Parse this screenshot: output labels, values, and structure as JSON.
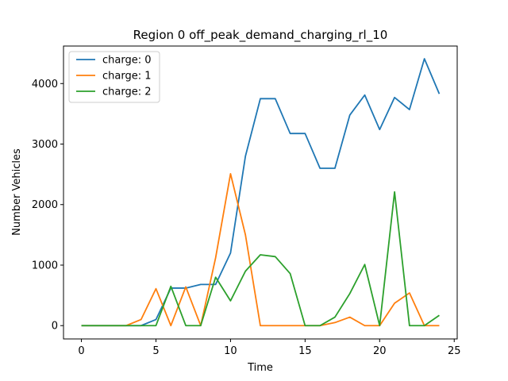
{
  "chart_data": {
    "type": "line",
    "title": "Region 0 off_peak_demand_charging_rl_10",
    "xlabel": "Time",
    "ylabel": "Number Vehicles",
    "xlim": [
      -1.2,
      25.2
    ],
    "ylim": [
      -220,
      4620
    ],
    "xticks": [
      0,
      5,
      10,
      15,
      20,
      25
    ],
    "yticks": [
      0,
      1000,
      2000,
      3000,
      4000
    ],
    "legend_position": "upper-left",
    "grid": false,
    "x": [
      0,
      1,
      2,
      3,
      4,
      5,
      6,
      7,
      8,
      9,
      10,
      11,
      12,
      13,
      14,
      15,
      16,
      17,
      18,
      19,
      20,
      21,
      22,
      23,
      24
    ],
    "series": [
      {
        "name": "charge: 0",
        "color": "#1f77b4",
        "values": [
          0,
          0,
          0,
          0,
          0,
          100,
          620,
          620,
          680,
          680,
          1200,
          2800,
          3750,
          3750,
          3175,
          3175,
          2600,
          2600,
          3480,
          3810,
          3240,
          3770,
          3570,
          4410,
          3830
        ]
      },
      {
        "name": "charge: 1",
        "color": "#ff7f0e",
        "values": [
          0,
          0,
          0,
          0,
          100,
          610,
          0,
          640,
          0,
          1120,
          2510,
          1500,
          0,
          0,
          0,
          0,
          0,
          50,
          140,
          0,
          0,
          370,
          540,
          0,
          0
        ]
      },
      {
        "name": "charge: 2",
        "color": "#2ca02c",
        "values": [
          0,
          0,
          0,
          0,
          0,
          0,
          650,
          0,
          0,
          800,
          410,
          900,
          1170,
          1140,
          860,
          0,
          0,
          140,
          530,
          1010,
          0,
          2210,
          0,
          0,
          170
        ]
      }
    ]
  }
}
